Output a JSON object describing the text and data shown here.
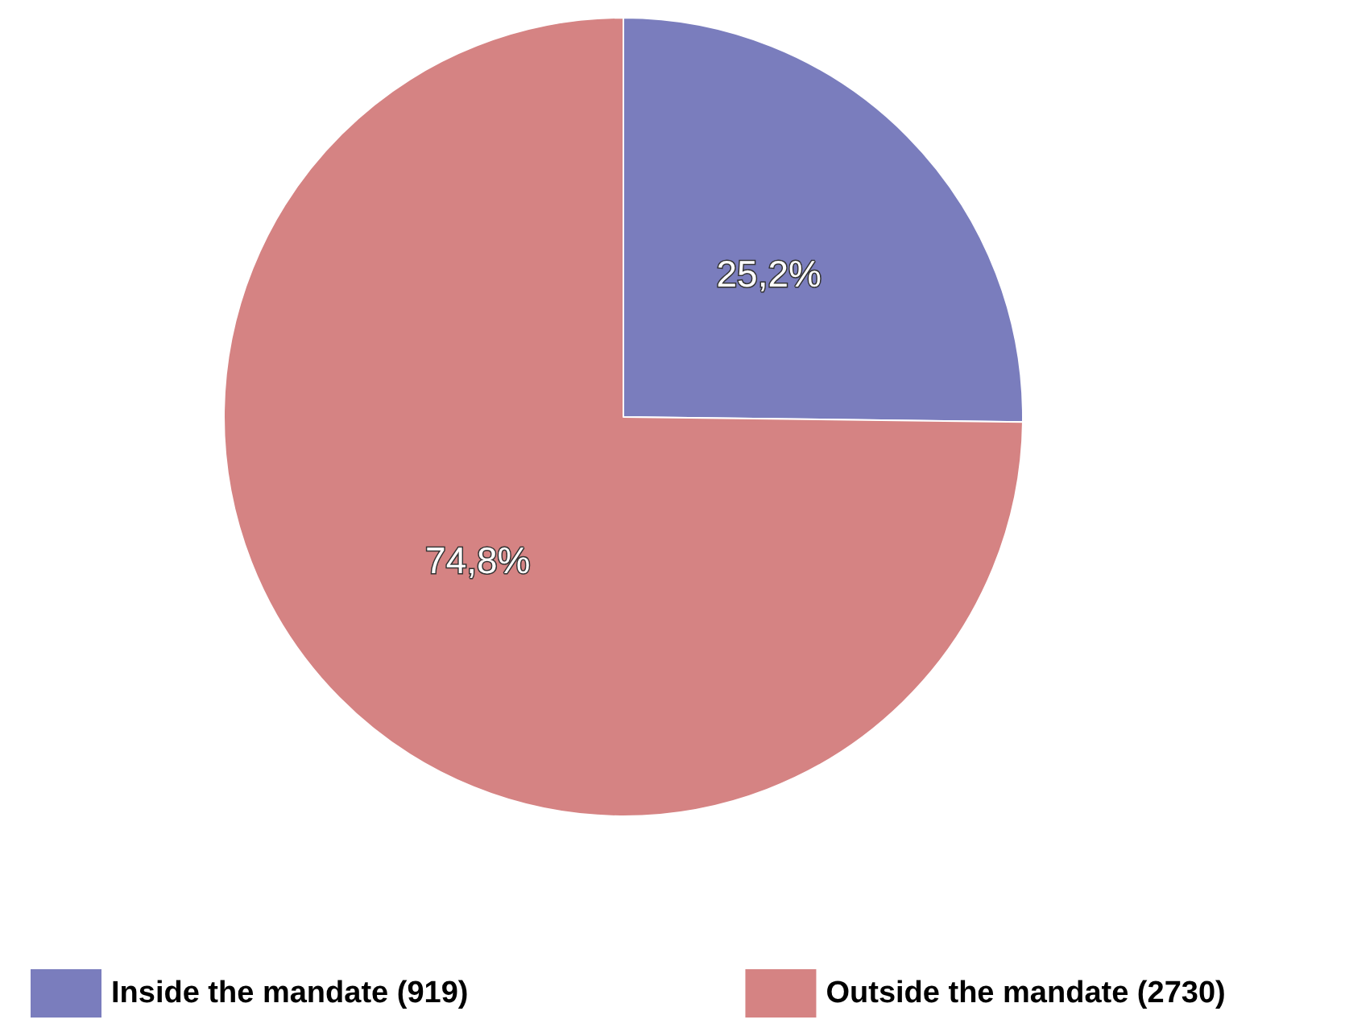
{
  "chart_data": {
    "type": "pie",
    "categories": [
      "Inside the mandate (919)",
      "Outside the mandate (2730)"
    ],
    "values": [
      25.2,
      74.8
    ],
    "value_labels": [
      "25,2%",
      "74,8%"
    ],
    "colors": [
      "#7a7dbd",
      "#d58383"
    ],
    "legend": "bottom"
  }
}
